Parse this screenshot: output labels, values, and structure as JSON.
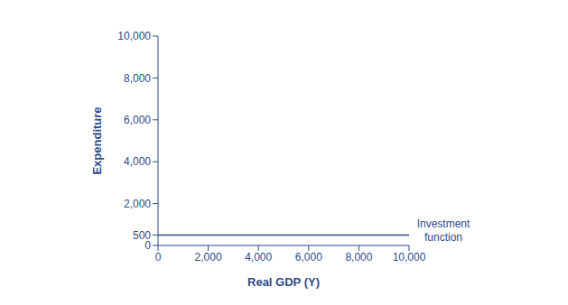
{
  "chart_data": {
    "type": "line",
    "x_label": "Real GDP (Y)",
    "y_label": "Expenditure",
    "xlim": [
      0,
      10000
    ],
    "ylim": [
      0,
      10000
    ],
    "xticks": [
      0,
      {
        "value": 2000,
        "label": "2,000"
      },
      {
        "value": 4000,
        "label": "4,000"
      },
      {
        "value": 6000,
        "label": "6,000"
      },
      {
        "value": 8000,
        "label": "8,000"
      },
      {
        "value": 10000,
        "label": "10,000"
      }
    ],
    "yticks": [
      0,
      500,
      {
        "value": 2000,
        "label": "2,000"
      },
      {
        "value": 4000,
        "label": "4,000"
      },
      {
        "value": 6000,
        "label": "6,000"
      },
      {
        "value": 8000,
        "label": "8,000"
      },
      {
        "value": 10000,
        "label": "10,000"
      }
    ],
    "grid": false,
    "series": [
      {
        "name": "Investment function",
        "color": "#2e4a8a",
        "x": [
          0,
          10000
        ],
        "values": [
          500,
          500
        ]
      }
    ]
  }
}
